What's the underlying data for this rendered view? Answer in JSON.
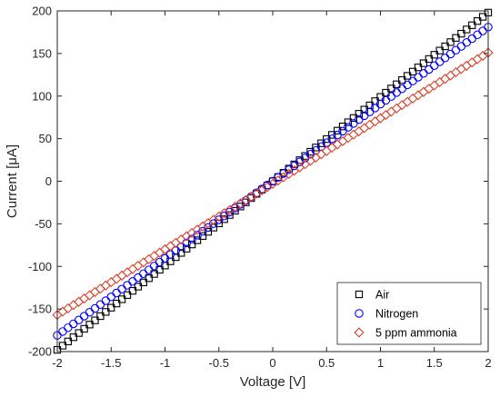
{
  "chart_data": {
    "type": "scatter",
    "title": "",
    "xlabel": "Voltage [V]",
    "ylabel": "Current [μA]",
    "xlim": [
      -2,
      2
    ],
    "ylim": [
      -200,
      200
    ],
    "xticks": [
      -2,
      -1.5,
      -1,
      -0.5,
      0,
      0.5,
      1,
      1.5,
      2
    ],
    "yticks": [
      -200,
      -150,
      -100,
      -50,
      0,
      50,
      100,
      150,
      200
    ],
    "xtick_labels": [
      "-2",
      "-1.5",
      "-1",
      "-0.5",
      "0",
      "0.5",
      "1",
      "1.5",
      "2"
    ],
    "ytick_labels": [
      "-200",
      "-150",
      "-100",
      "-50",
      "0",
      "50",
      "100",
      "150",
      "200"
    ],
    "grid": false,
    "legend_position": "bottom-right",
    "x_range": {
      "start": -2,
      "end": 2,
      "step": 0.05
    },
    "series": [
      {
        "name": "Air",
        "marker": "square",
        "color": "#000000",
        "slope": 99,
        "intercept": 0
      },
      {
        "name": "Nitrogen",
        "marker": "circle",
        "color": "#0000ff",
        "slope": 90.5,
        "intercept": 0
      },
      {
        "name": "5 ppm ammonia",
        "marker": "diamond",
        "color": "#d9402a",
        "slope": 77,
        "intercept": -3
      }
    ]
  }
}
